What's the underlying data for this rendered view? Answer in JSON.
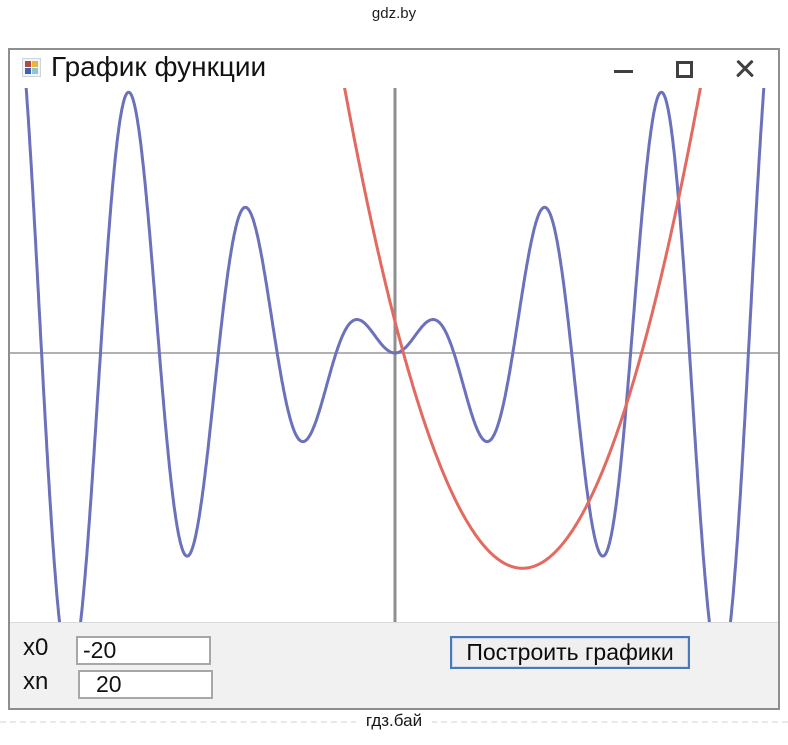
{
  "page": {
    "watermark_top": "gdz.by",
    "watermark_bottom": "гдз.бай"
  },
  "window": {
    "title": "График функции"
  },
  "form": {
    "fields": [
      {
        "id": "x0",
        "label": "x0",
        "value": "-20"
      },
      {
        "id": "xn",
        "label": "xn",
        "value": "20"
      }
    ],
    "button_label": "Построить графики"
  },
  "chart_data": {
    "type": "line",
    "title": "",
    "xlabel": "",
    "ylabel": "",
    "x_range": [
      -20,
      20
    ],
    "y_visible_range": [
      -14.4,
      14.4
    ],
    "axes": {
      "x_axis": true,
      "y_axis": true,
      "ticks": "none",
      "grid": false,
      "axis_color": "#b2b2b2",
      "y_axis_color": "#8f8f8f"
    },
    "legend": "none",
    "series": [
      {
        "id": "x_sin_x",
        "name": "y = x·sin(x)",
        "color": "#6b71ba",
        "formula": "x*sin(x)",
        "key_points": "even function; zeros at multiples of pi; peaks ~1.8 at ±2.0, ~7.9 at ±8.0, ~14.2 at ±14.2; troughs ~-4.8 at ±4.9, ~-11.0 at ±11.1, ~-17.3 at ±17.3 (clipped below view)"
      },
      {
        "id": "parabola",
        "name": "y = 0.29·(x − 6.8)² − 11.7",
        "color": "#e26a60",
        "formula": "0.29*(x-6.8)^2 - 11.7",
        "params": {
          "a": 0.29,
          "h": 6.8,
          "k": -11.7
        },
        "key_points": "vertex at (6.8, -11.7); x-intercepts ~0.4 and ~13.2; enters view at top near x=-2.6 and x=16.2"
      }
    ],
    "inputs_shown": {
      "x0": -20,
      "xn": 20
    }
  }
}
